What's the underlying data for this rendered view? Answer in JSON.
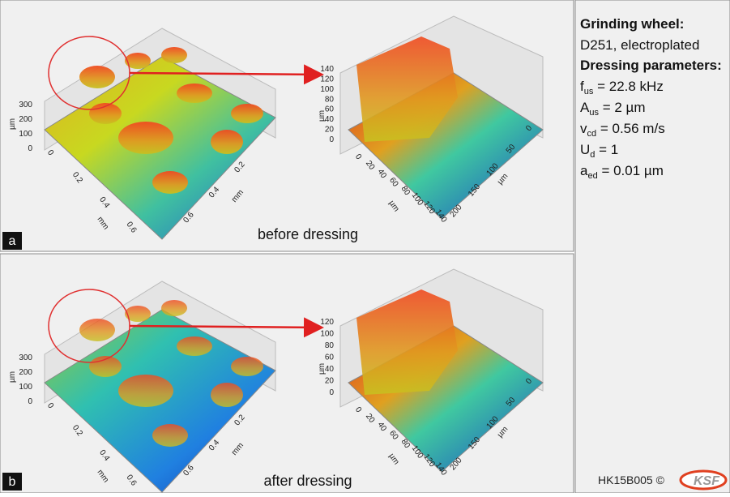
{
  "panels": [
    {
      "label": "a",
      "caption": "before dressing",
      "overview": {
        "z_unit": "µm",
        "z_ticks": [
          "300",
          "200",
          "100",
          "0"
        ],
        "x_ticks": [
          "0",
          "0.2",
          "0.4",
          "0.6"
        ],
        "x_unit": "mm",
        "y_ticks": [
          "0.6",
          "0.4",
          "0.2"
        ],
        "y_unit": "mm"
      },
      "detail": {
        "z_unit": "µm",
        "z_ticks": [
          "140",
          "120",
          "100",
          "80",
          "60",
          "40",
          "20",
          "0"
        ],
        "x_ticks": [
          "0",
          "20",
          "40",
          "60",
          "80",
          "100",
          "120",
          "140"
        ],
        "x_unit": "µm",
        "y_ticks": [
          "200",
          "150",
          "100",
          "50",
          "0"
        ],
        "y_unit": "µm"
      }
    },
    {
      "label": "b",
      "caption": "after dressing",
      "overview": {
        "z_unit": "µm",
        "z_ticks": [
          "300",
          "200",
          "100",
          "0"
        ],
        "x_ticks": [
          "0",
          "0.2",
          "0.4",
          "0.6"
        ],
        "x_unit": "mm",
        "y_ticks": [
          "0.6",
          "0.4",
          "0.2"
        ],
        "y_unit": "mm"
      },
      "detail": {
        "z_unit": "µm",
        "z_ticks": [
          "120",
          "100",
          "80",
          "60",
          "40",
          "20",
          "0"
        ],
        "x_ticks": [
          "0",
          "20",
          "40",
          "60",
          "80",
          "100",
          "120",
          "140"
        ],
        "x_unit": "µm",
        "y_ticks": [
          "200",
          "150",
          "100",
          "50",
          "0"
        ],
        "y_unit": "µm"
      }
    }
  ],
  "info": {
    "wheel_title": "Grinding wheel:",
    "wheel": "D251, electroplated",
    "params_title": "Dressing parameters:",
    "params": [
      {
        "symbol": "f",
        "sub": "us",
        "rest": " = 22.8 kHz"
      },
      {
        "symbol": "A",
        "sub": "us",
        "rest": " = 2 µm"
      },
      {
        "symbol": "v",
        "sub": "cd",
        "rest": " = 0.56 m/s"
      },
      {
        "symbol": "U",
        "sub": "d",
        "rest": " = 1"
      },
      {
        "symbol": "a",
        "sub": "ed",
        "rest": " = 0.01 µm"
      }
    ]
  },
  "footer": {
    "code": "HK15B005 ©",
    "logo": "KSF"
  }
}
